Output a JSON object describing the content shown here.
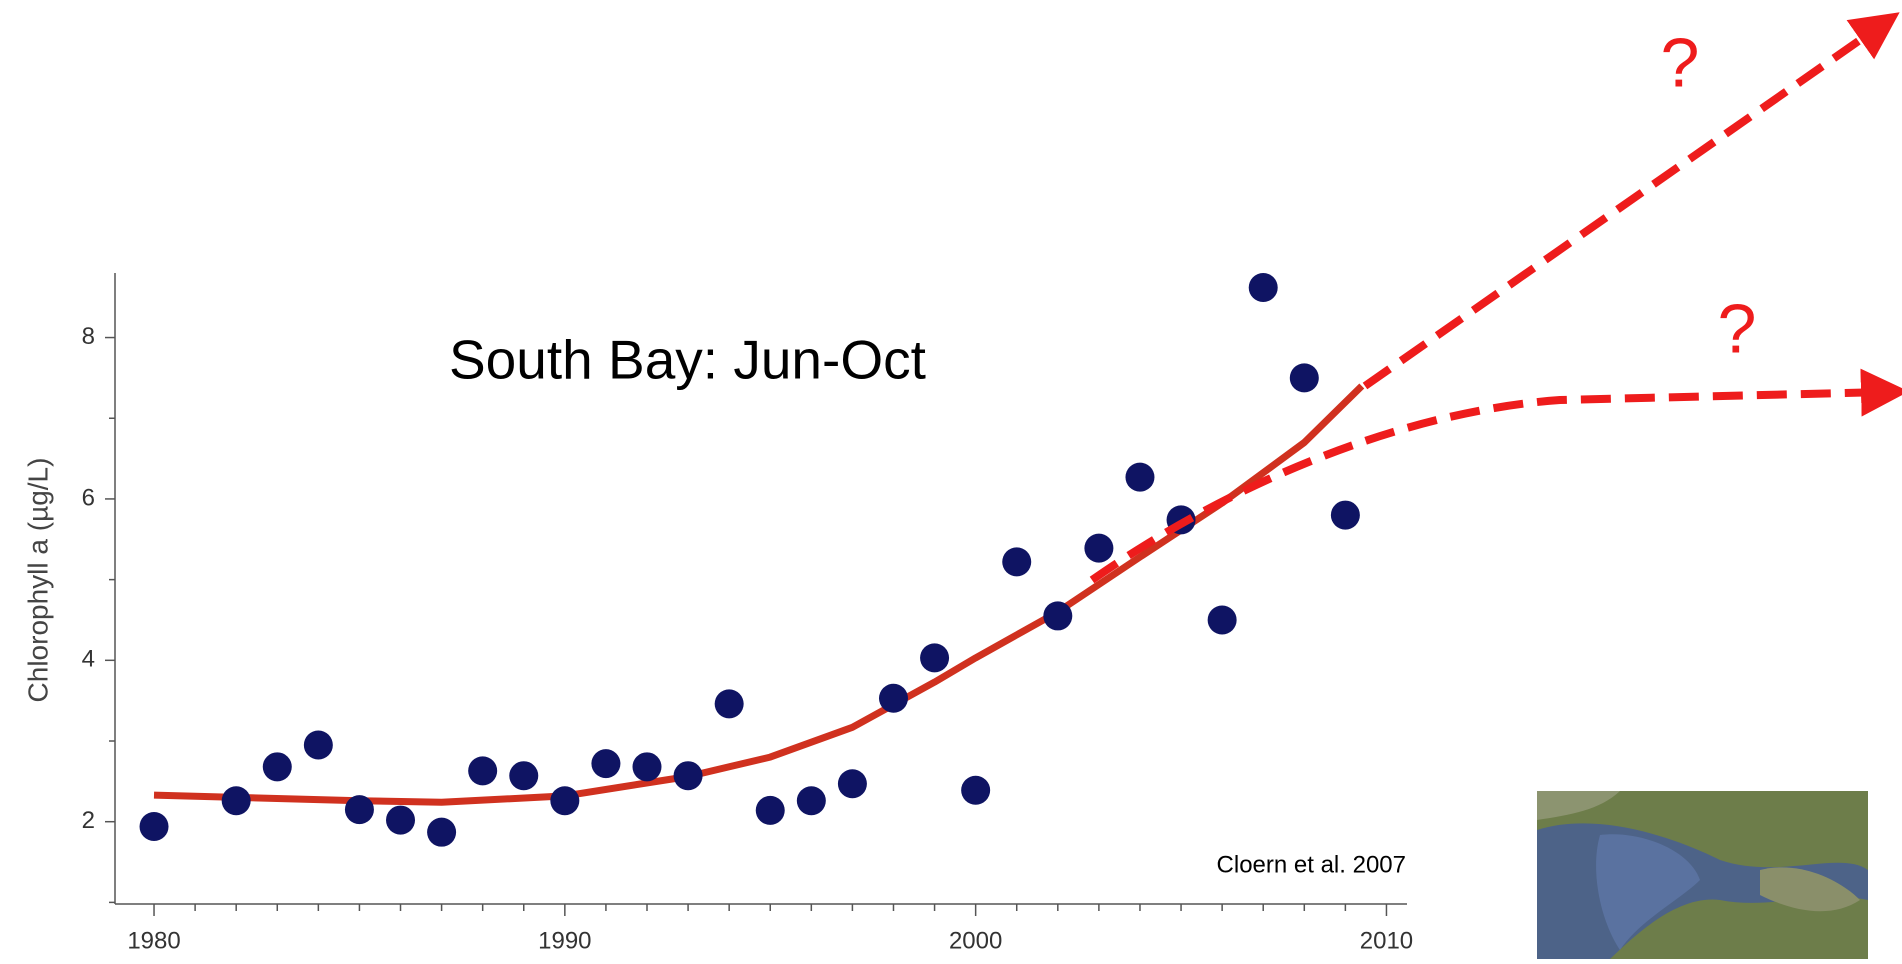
{
  "chart_data": {
    "type": "scatter",
    "title": "South Bay: Jun-Oct",
    "y_label": "Chlorophyll a (µg/L)",
    "annotation": "Cloern et al. 2007",
    "projection_labels": [
      "?",
      "?"
    ],
    "x": [
      1980,
      1982,
      1983,
      1984,
      1985,
      1986,
      1987,
      1988,
      1989,
      1990,
      1991,
      1992,
      1993,
      1994,
      1995,
      1996,
      1997,
      1998,
      1999,
      2000,
      2001,
      2002,
      2003,
      2004,
      2005,
      2006,
      2007,
      2008,
      2009
    ],
    "values": [
      1.94,
      2.26,
      2.68,
      2.95,
      2.15,
      2.02,
      1.87,
      2.63,
      2.57,
      2.26,
      2.72,
      2.68,
      2.57,
      3.46,
      2.14,
      2.26,
      2.47,
      3.53,
      4.03,
      2.39,
      5.22,
      4.55,
      5.39,
      6.27,
      5.74,
      4.5,
      8.62,
      7.5,
      5.8
    ],
    "color": "#0f1463",
    "trend_x": [
      1980,
      1985,
      1987,
      1990,
      1993,
      1995,
      1997,
      1999,
      2000,
      2002,
      2004,
      2006,
      2008,
      2009.4
    ],
    "trend_values": [
      2.33,
      2.26,
      2.24,
      2.32,
      2.56,
      2.8,
      3.17,
      3.73,
      4.03,
      4.6,
      5.28,
      5.95,
      6.7,
      7.4
    ],
    "trend_color": "#d0311f",
    "xlim": [
      1979.05,
      2010.5
    ],
    "ylim": [
      0.98,
      8.8
    ],
    "xticks": [
      1980,
      1990,
      2000,
      2010
    ],
    "yticks": [
      2,
      4,
      6,
      8
    ],
    "x_minor_ticks": [
      1981,
      1982,
      1983,
      1984,
      1985,
      1986,
      1987,
      1988,
      1989,
      1991,
      1992,
      1993,
      1994,
      1995,
      1996,
      1997,
      1998,
      1999,
      2001,
      2002,
      2003,
      2004,
      2005,
      2006,
      2007,
      2008,
      2009
    ],
    "y_minor_ticks": [
      1,
      3,
      5,
      7
    ]
  }
}
